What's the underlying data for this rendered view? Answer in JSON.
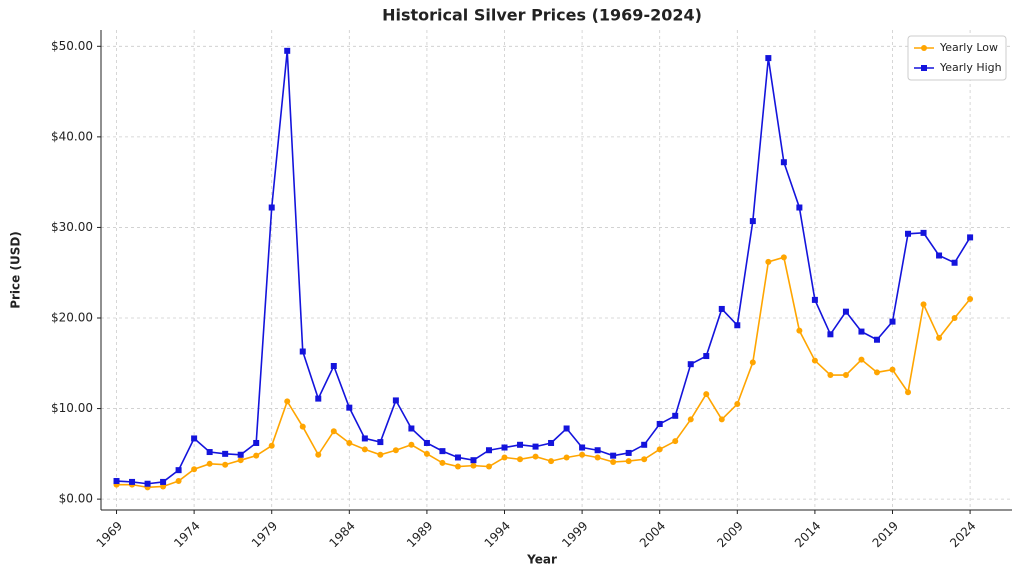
{
  "chart_data": {
    "type": "line",
    "title": "Historical Silver Prices (1969-2024)",
    "x_label": "Year",
    "y_label": "Price (USD)",
    "x": [
      1969,
      1970,
      1971,
      1972,
      1973,
      1974,
      1975,
      1976,
      1977,
      1978,
      1979,
      1980,
      1981,
      1982,
      1983,
      1984,
      1985,
      1986,
      1987,
      1988,
      1989,
      1990,
      1991,
      1992,
      1993,
      1994,
      1995,
      1996,
      1997,
      1998,
      1999,
      2000,
      2001,
      2002,
      2003,
      2004,
      2005,
      2006,
      2007,
      2008,
      2009,
      2010,
      2011,
      2012,
      2013,
      2014,
      2015,
      2016,
      2017,
      2018,
      2019,
      2020,
      2021,
      2022,
      2023,
      2024
    ],
    "series": [
      {
        "name": "Yearly Low",
        "color": "#ffa500",
        "marker": "circle",
        "values": [
          1.6,
          1.6,
          1.3,
          1.4,
          2.0,
          3.3,
          3.9,
          3.8,
          4.3,
          4.8,
          5.9,
          10.8,
          8.0,
          4.9,
          7.5,
          6.2,
          5.5,
          4.9,
          5.4,
          6.0,
          5.0,
          4.0,
          3.6,
          3.7,
          3.6,
          4.6,
          4.4,
          4.7,
          4.2,
          4.6,
          4.9,
          4.6,
          4.1,
          4.2,
          4.4,
          5.5,
          6.4,
          8.8,
          11.6,
          8.8,
          10.5,
          15.1,
          26.2,
          26.7,
          18.6,
          15.3,
          13.7,
          13.7,
          15.4,
          14.0,
          14.3,
          11.8,
          21.5,
          17.8,
          20.0,
          22.1
        ]
      },
      {
        "name": "Yearly High",
        "color": "#1414dc",
        "marker": "square",
        "values": [
          2.0,
          1.9,
          1.7,
          1.9,
          3.2,
          6.7,
          5.2,
          5.0,
          4.9,
          6.2,
          32.2,
          49.5,
          16.3,
          11.1,
          14.7,
          10.1,
          6.7,
          6.3,
          10.9,
          7.8,
          6.2,
          5.3,
          4.6,
          4.3,
          5.4,
          5.7,
          6.0,
          5.8,
          6.2,
          7.8,
          5.7,
          5.4,
          4.8,
          5.1,
          6.0,
          8.3,
          9.2,
          14.9,
          15.8,
          21.0,
          19.2,
          30.7,
          48.7,
          37.2,
          32.2,
          22.0,
          18.2,
          20.7,
          18.5,
          17.6,
          19.6,
          29.3,
          29.4,
          26.9,
          26.1,
          28.9
        ]
      }
    ],
    "xlim": [
      1968,
      2026.7
    ],
    "ylim": [
      -1.2,
      51.8
    ],
    "xticks": [
      1969,
      1974,
      1979,
      1984,
      1989,
      1994,
      1999,
      2004,
      2009,
      2014,
      2019,
      2024
    ],
    "yticks": [
      {
        "value": 0,
        "label": "$0.00"
      },
      {
        "value": 10,
        "label": "$10.00"
      },
      {
        "value": 20,
        "label": "$20.00"
      },
      {
        "value": 30,
        "label": "$30.00"
      },
      {
        "value": 40,
        "label": "$40.00"
      },
      {
        "value": 50,
        "label": "$50.00"
      }
    ],
    "grid": true,
    "legend": "upper right"
  }
}
